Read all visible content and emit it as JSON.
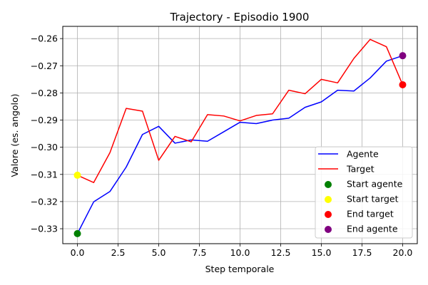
{
  "chart_data": {
    "type": "line",
    "title": "Trajectory - Episodio 1900",
    "xlabel": "Step temporale",
    "ylabel": "Valore (es. angolo)",
    "xlim": [
      -0.9,
      20.9
    ],
    "ylim": [
      -0.3355,
      -0.2555
    ],
    "xticks": [
      0,
      2.5,
      5,
      7.5,
      10,
      12.5,
      15,
      17.5,
      20
    ],
    "xtick_labels": [
      "0.0",
      "2.5",
      "5.0",
      "7.5",
      "10.0",
      "12.5",
      "15.0",
      "17.5",
      "20.0"
    ],
    "yticks": [
      -0.33,
      -0.32,
      -0.31,
      -0.3,
      -0.29,
      -0.28,
      -0.27,
      -0.26
    ],
    "ytick_labels": [
      "−0.33",
      "−0.32",
      "−0.31",
      "−0.30",
      "−0.29",
      "−0.28",
      "−0.27",
      "−0.26"
    ],
    "grid": true,
    "legend_position": "bottom-right",
    "x": [
      0,
      1,
      2,
      3,
      4,
      5,
      6,
      7,
      8,
      9,
      10,
      11,
      12,
      13,
      14,
      15,
      16,
      17,
      18,
      19,
      20
    ],
    "series": [
      {
        "name": "Agente",
        "color": "#0000ff",
        "values": [
          -0.3318,
          -0.3201,
          -0.3163,
          -0.3073,
          -0.2953,
          -0.2923,
          -0.2985,
          -0.2973,
          -0.2978,
          -0.2943,
          -0.2908,
          -0.2913,
          -0.29,
          -0.2893,
          -0.2853,
          -0.2833,
          -0.279,
          -0.2793,
          -0.2745,
          -0.2683,
          -0.2663
        ]
      },
      {
        "name": "Target",
        "color": "#ff0000",
        "values": [
          -0.3103,
          -0.313,
          -0.302,
          -0.2857,
          -0.2867,
          -0.3048,
          -0.296,
          -0.298,
          -0.288,
          -0.2885,
          -0.2903,
          -0.2883,
          -0.2877,
          -0.279,
          -0.2803,
          -0.275,
          -0.2763,
          -0.2673,
          -0.2603,
          -0.263,
          -0.277
        ]
      }
    ],
    "markers": [
      {
        "name": "Start agente",
        "color": "#008000",
        "x": 0,
        "y": -0.3318
      },
      {
        "name": "Start target",
        "color": "#ffff00",
        "x": 0,
        "y": -0.3103
      },
      {
        "name": "End target",
        "color": "#ff0000",
        "x": 20,
        "y": -0.277
      },
      {
        "name": "End agente",
        "color": "#800080",
        "x": 20,
        "y": -0.2663
      }
    ]
  }
}
